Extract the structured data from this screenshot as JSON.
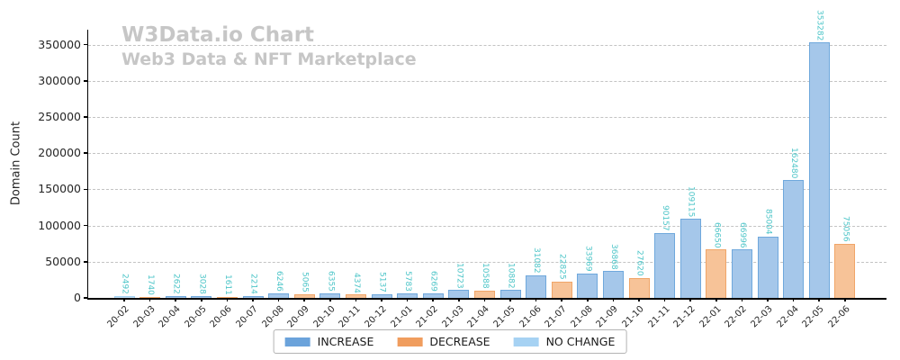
{
  "title": "W3Data.io Chart",
  "subtitle": "Web3 Data & NFT Marketplace",
  "title_color": "#c6c6c6",
  "chart_data": {
    "type": "bar",
    "title": "W3Data.io Chart",
    "subtitle": "Web3 Data & NFT Marketplace",
    "xlabel": "",
    "ylabel": "Domain Count",
    "ylim": [
      0,
      370950
    ],
    "yticks": [
      0,
      50000,
      100000,
      150000,
      200000,
      250000,
      300000,
      350000
    ],
    "grid": "horizontal-dashed",
    "grid_color": "#c3c3c3",
    "value_label_color": "#4dc5c8",
    "legend_position": "bottom-center",
    "categories": [
      "20-02",
      "20-03",
      "20-04",
      "20-05",
      "20-06",
      "20-07",
      "20-08",
      "20-09",
      "20-10",
      "20-11",
      "20-12",
      "21-01",
      "21-02",
      "21-03",
      "21-04",
      "21-05",
      "21-06",
      "21-07",
      "21-08",
      "21-09",
      "21-10",
      "21-11",
      "21-12",
      "22-01",
      "22-02",
      "22-03",
      "22-04",
      "22-05",
      "22-06"
    ],
    "values": [
      2492,
      1740,
      2622,
      3028,
      1611,
      2214,
      6246,
      5065,
      6355,
      4374,
      5137,
      5783,
      6269,
      10723,
      10588,
      10882,
      31082,
      22825,
      33969,
      36868,
      27620,
      90157,
      109115,
      66650,
      66996,
      85004,
      162480,
      353282,
      75056
    ],
    "statuses": [
      "no_change",
      "decrease",
      "increase",
      "increase",
      "decrease",
      "increase",
      "increase",
      "decrease",
      "increase",
      "decrease",
      "increase",
      "increase",
      "increase",
      "increase",
      "decrease",
      "increase",
      "increase",
      "decrease",
      "increase",
      "increase",
      "decrease",
      "increase",
      "increase",
      "decrease",
      "increase",
      "increase",
      "increase",
      "increase",
      "decrease"
    ],
    "colors": {
      "increase": {
        "fill": "#a5c7ea",
        "edge": "#6fa8dc",
        "legend": "#6ba3db"
      },
      "decrease": {
        "fill": "#f7c398",
        "edge": "#f0a568",
        "legend": "#f09d5e"
      },
      "no_change": {
        "fill": "#c2e0f8",
        "edge": "#a2d1f2",
        "legend": "#a6d2f3"
      }
    }
  },
  "legend": {
    "items": [
      {
        "key": "increase",
        "label": "INCREASE"
      },
      {
        "key": "decrease",
        "label": "DECREASE"
      },
      {
        "key": "no_change",
        "label": "NO CHANGE"
      }
    ]
  }
}
